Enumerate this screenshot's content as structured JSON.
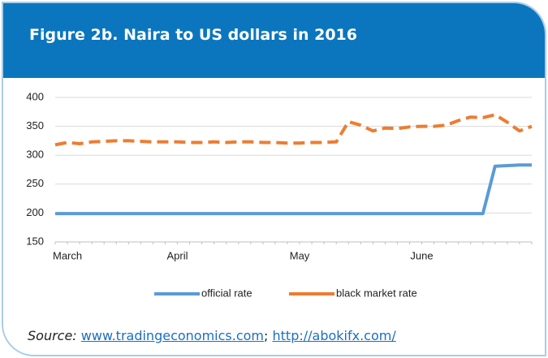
{
  "chart_data": {
    "type": "line",
    "title": "Figure 2b. Naira to US dollars in 2016",
    "categories": [
      null,
      "March",
      null,
      null,
      null,
      null,
      null,
      null,
      null,
      null,
      "April",
      null,
      null,
      null,
      null,
      null,
      null,
      null,
      null,
      null,
      "May",
      null,
      null,
      null,
      null,
      null,
      null,
      null,
      null,
      null,
      "June",
      null,
      null,
      null,
      null,
      null,
      null,
      null,
      null,
      null
    ],
    "series": [
      {
        "name": "official rate",
        "color": "#5b9bd5",
        "dashed": false,
        "values": [
          199,
          199,
          199,
          199,
          199,
          199,
          199,
          199,
          199,
          199,
          199,
          199,
          199,
          199,
          199,
          199,
          199,
          199,
          199,
          199,
          199,
          199,
          199,
          199,
          199,
          199,
          199,
          199,
          199,
          199,
          199,
          199,
          199,
          199,
          199,
          199,
          281,
          282,
          283,
          283
        ]
      },
      {
        "name": "black market rate",
        "color": "#ed7d31",
        "dashed": true,
        "values": [
          318,
          322,
          320,
          323,
          324,
          325,
          325,
          324,
          323,
          323,
          323,
          322,
          322,
          323,
          322,
          323,
          323,
          322,
          322,
          321,
          321,
          322,
          322,
          323,
          358,
          352,
          342,
          347,
          346,
          349,
          350,
          350,
          352,
          360,
          366,
          365,
          370,
          357,
          342,
          350
        ]
      }
    ],
    "ylim": [
      150,
      400
    ],
    "yticks": [
      150,
      200,
      250,
      300,
      350,
      400
    ],
    "grid": true,
    "legend": "bottom"
  },
  "source": {
    "label": "Source:",
    "links": [
      "www.tradingeconomics.com",
      "http://abokifx.com/"
    ],
    "separator": ";"
  }
}
